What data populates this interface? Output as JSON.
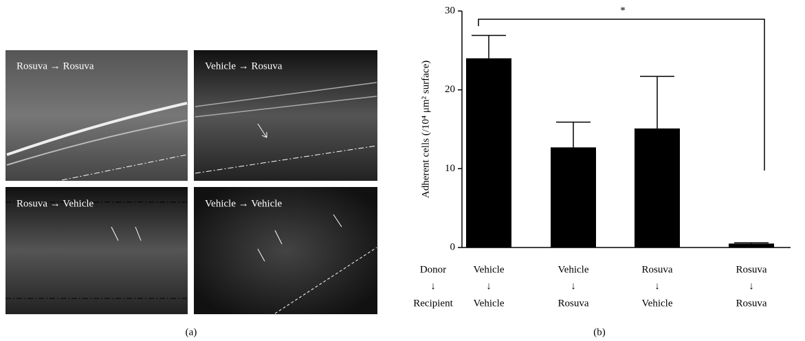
{
  "images": [
    {
      "label": "Rosuva → Rosuva"
    },
    {
      "label": "Vehicle → Rosuva"
    },
    {
      "label": "Rosuva → Vehicle"
    },
    {
      "label": "Vehicle → Vehicle"
    }
  ],
  "panel_a_label": "(a)",
  "panel_b_label": "(b)",
  "chart_data": {
    "type": "bar",
    "ylabel": "Adherent cells (/10⁴ μm² surface)",
    "donor_label": "Donor",
    "recipient_label": "Recipient",
    "arrow": "↓",
    "categories": [
      "Vehicle",
      "Vehicle",
      "Rosuva",
      "Rosuva"
    ],
    "recipients": [
      "Vehicle",
      "Rosuva",
      "Vehicle",
      "Rosuva"
    ],
    "values": [
      24,
      12.7,
      15.1,
      0.5
    ],
    "errors": [
      2.9,
      3.2,
      6.6,
      0.1
    ],
    "color": "#000000",
    "ylim": [
      0,
      30
    ],
    "yticks": [
      0,
      10,
      20,
      30
    ],
    "significance": "*"
  }
}
